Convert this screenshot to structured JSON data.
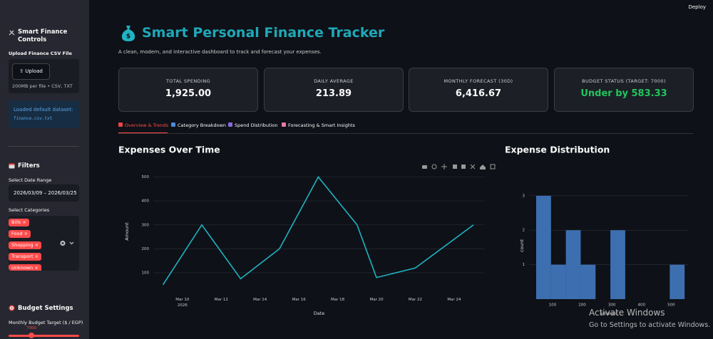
{
  "header": {
    "deploy": "Deploy"
  },
  "sidebar": {
    "title": "Smart Finance Controls",
    "upload_label": "Upload Finance CSV File",
    "upload_button": "Upload",
    "upload_hint": "200MB per file • CSV, TXT",
    "loaded_message": "Loaded default dataset:",
    "loaded_file": "finance.csv.txt",
    "filters_title": "Filters",
    "date_label": "Select Date Range",
    "date_value": "2026/03/09 – 2026/03/25",
    "categories_label": "Select Categories",
    "categories": [
      "Bills",
      "Food",
      "Shopping",
      "Transport",
      "Unknown"
    ],
    "budget_title": "Budget Settings",
    "budget_label": "Monthly Budget Target ($ / EGP)",
    "budget_value": "7000"
  },
  "main": {
    "title": "Smart Personal Finance Tracker",
    "subtitle": "A clean, modern, and interactive dashboard to track and forecast your expenses.",
    "metrics": [
      {
        "label": "TOTAL SPENDING",
        "value": "1,925.00"
      },
      {
        "label": "DAILY AVERAGE",
        "value": "213.89"
      },
      {
        "label": "MONTHLY FORECAST (30D)",
        "value": "6,416.67"
      },
      {
        "label": "BUDGET STATUS (TARGET: 7000)",
        "value": "Under by 583.33"
      }
    ],
    "tabs": [
      "Overview & Trends",
      "Category Breakdown",
      "Spend Distribution",
      "Forecasting & Smart Insights"
    ],
    "active_tab": 0
  },
  "chart_data": [
    {
      "type": "line",
      "title": "Expenses Over Time",
      "x_label": "Date",
      "y_label": "Amount",
      "x": [
        "2026-03-09",
        "2026-03-11",
        "2026-03-13",
        "2026-03-15",
        "2026-03-17",
        "2026-03-19",
        "2026-03-20",
        "2026-03-22",
        "2026-03-25"
      ],
      "values": [
        50,
        300,
        75,
        200,
        500,
        300,
        80,
        120,
        300
      ],
      "color": "#1fb3c3",
      "xlim": [
        "2026-03-08T12:00",
        "2026-03-25T14:00"
      ],
      "xticks": [
        {
          "value": "2026-03-10",
          "label": "Mar 10\n2026"
        },
        {
          "value": "2026-03-12",
          "label": "Mar 12"
        },
        {
          "value": "2026-03-14",
          "label": "Mar 14"
        },
        {
          "value": "2026-03-16",
          "label": "Mar 16"
        },
        {
          "value": "2026-03-18",
          "label": "Mar 18"
        },
        {
          "value": "2026-03-20",
          "label": "Mar 20"
        },
        {
          "value": "2026-03-22",
          "label": "Mar 22"
        },
        {
          "value": "2026-03-24",
          "label": "Mar 24"
        }
      ],
      "ylim": [
        -10,
        555
      ],
      "yticks": [
        100,
        200,
        300,
        400,
        500
      ],
      "grid": true
    },
    {
      "type": "histogram",
      "title": "Expense Distribution",
      "x_label": "amount",
      "y_label": "count",
      "bins": [
        45,
        95,
        145,
        195,
        245,
        295,
        345,
        395,
        445,
        495,
        545
      ],
      "values": [
        3,
        1,
        2,
        1,
        0,
        2,
        0,
        0,
        0,
        1
      ],
      "color": "#3d6fb0",
      "xlim": [
        21,
        559
      ],
      "xticks": [
        100,
        200,
        300,
        400,
        500
      ],
      "ylim": [
        0,
        3.1
      ],
      "yticks": [
        1,
        2,
        3
      ],
      "grid": true
    }
  ],
  "overlay": {
    "watermark_title": "Activate Windows",
    "watermark_text": "Go to Settings to activate Windows."
  }
}
